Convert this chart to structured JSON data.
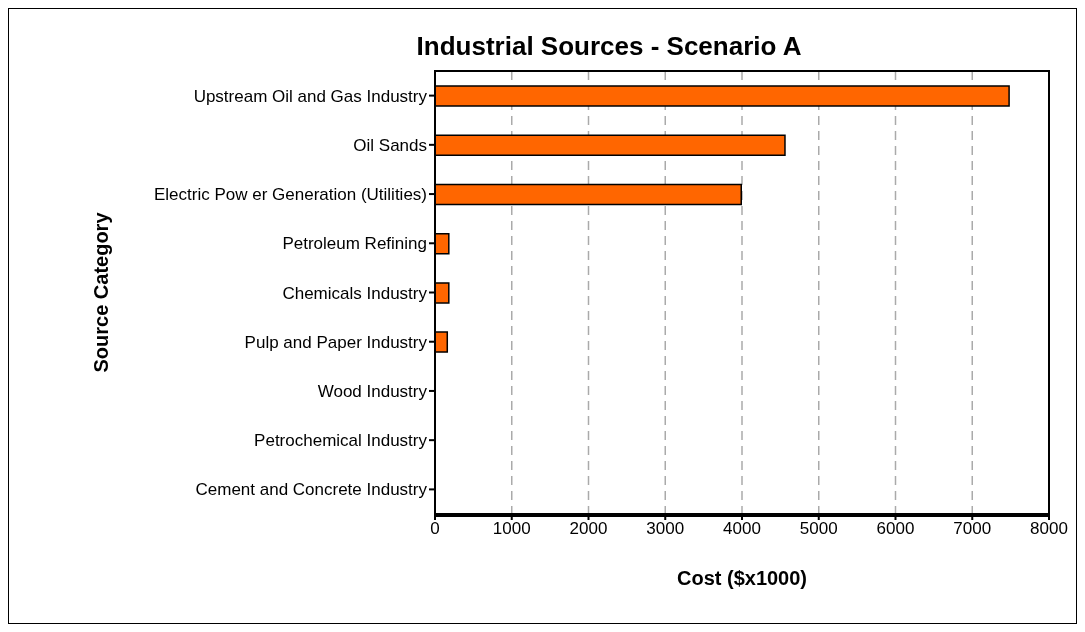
{
  "chart_data": {
    "type": "bar",
    "orientation": "horizontal",
    "title": "Industrial Sources - Scenario A",
    "xlabel": "Cost ($x1000)",
    "ylabel": "Source Category",
    "categories": [
      "Upstream Oil and Gas Industry",
      "Oil Sands",
      "Electric Pow er Generation (Utilities)",
      "Petroleum Refining",
      "Chemicals Industry",
      "Pulp and Paper Industry",
      "Wood Industry",
      "Petrochemical Industry",
      "Cement and Concrete Industry"
    ],
    "values": [
      7480,
      4560,
      3990,
      180,
      180,
      160,
      0,
      0,
      0
    ],
    "color": "#ff6600",
    "xlim": [
      0,
      8000
    ],
    "xticks": [
      0,
      1000,
      2000,
      3000,
      4000,
      5000,
      6000,
      7000,
      8000
    ],
    "grid": "x",
    "legend": false
  }
}
